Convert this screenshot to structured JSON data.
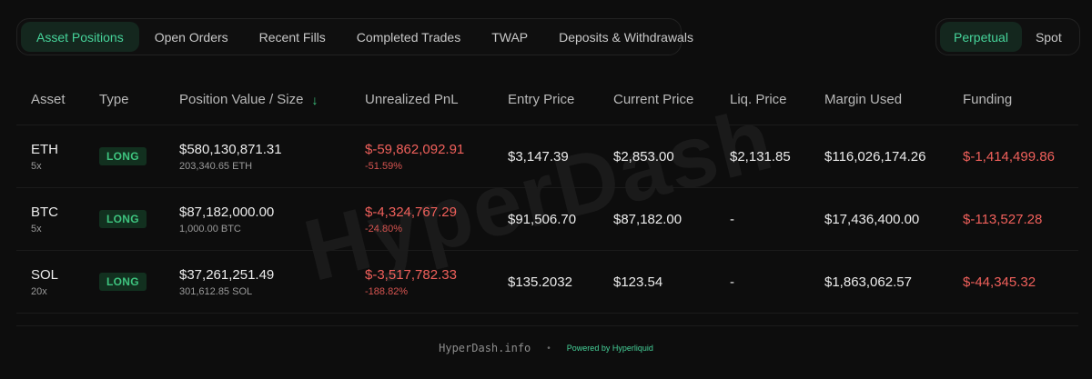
{
  "tabs": [
    {
      "label": "Asset Positions",
      "active": true
    },
    {
      "label": "Open Orders",
      "active": false
    },
    {
      "label": "Recent Fills",
      "active": false
    },
    {
      "label": "Completed Trades",
      "active": false
    },
    {
      "label": "TWAP",
      "active": false
    },
    {
      "label": "Deposits & Withdrawals",
      "active": false
    }
  ],
  "modes": [
    {
      "label": "Perpetual",
      "active": true
    },
    {
      "label": "Spot",
      "active": false
    }
  ],
  "table": {
    "headers": [
      "Asset",
      "Type",
      "Position Value / Size",
      "Unrealized PnL",
      "Entry Price",
      "Current Price",
      "Liq. Price",
      "Margin Used",
      "Funding"
    ],
    "sort_icon": "arrow-down-icon",
    "rows": [
      {
        "asset": "ETH",
        "leverage": "5x",
        "type": "LONG",
        "value": "$580,130,871.31",
        "size": "203,340.65 ETH",
        "pnl": "$-59,862,092.91",
        "pnl_pct": "-51.59%",
        "entry": "$3,147.39",
        "current": "$2,853.00",
        "liq": "$2,131.85",
        "margin": "$116,026,174.26",
        "funding": "$-1,414,499.86"
      },
      {
        "asset": "BTC",
        "leverage": "5x",
        "type": "LONG",
        "value": "$87,182,000.00",
        "size": "1,000.00 BTC",
        "pnl": "$-4,324,767.29",
        "pnl_pct": "-24.80%",
        "entry": "$91,506.70",
        "current": "$87,182.00",
        "liq": "-",
        "margin": "$17,436,400.00",
        "funding": "$-113,527.28"
      },
      {
        "asset": "SOL",
        "leverage": "20x",
        "type": "LONG",
        "value": "$37,261,251.49",
        "size": "301,612.85 SOL",
        "pnl": "$-3,517,782.33",
        "pnl_pct": "-188.82%",
        "entry": "$135.2032",
        "current": "$123.54",
        "liq": "-",
        "margin": "$1,863,062.57",
        "funding": "$-44,345.32"
      }
    ]
  },
  "watermark": "HyperDash",
  "footer": {
    "site": "HyperDash.info",
    "separator": "•",
    "powered": "Powered by Hyperliquid"
  },
  "colors": {
    "accent": "#46d39a",
    "negative": "#f0605b",
    "background": "#0d0d0d"
  }
}
